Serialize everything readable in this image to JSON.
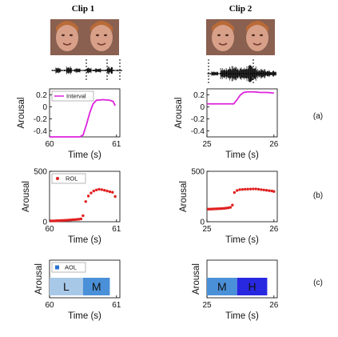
{
  "columns": [
    {
      "title": "Clip 1"
    },
    {
      "title": "Clip 2"
    }
  ],
  "panel_labels": [
    "(a)",
    "(b)",
    "(c)"
  ],
  "axis_labels": {
    "x": "Time (s)",
    "y": "Arousal"
  },
  "chart_data": [
    {
      "type": "line",
      "row": 0,
      "col": 0,
      "color": "#dd22dd",
      "legend": "Interval",
      "xlim": [
        60,
        61.05
      ],
      "ylim": [
        -0.5,
        0.3
      ],
      "xticks": [
        "60",
        "61"
      ],
      "yticks": [
        "0.2",
        "0",
        "-0.2",
        "-0.4"
      ],
      "x": [
        60,
        60.45,
        60.5,
        60.55,
        60.6,
        60.65,
        60.7,
        60.8,
        60.9,
        60.95,
        60.98
      ],
      "y": [
        -0.5,
        -0.5,
        -0.47,
        -0.3,
        -0.1,
        0.05,
        0.11,
        0.12,
        0.11,
        0.09,
        0.02
      ]
    },
    {
      "type": "line",
      "row": 0,
      "col": 1,
      "color": "#dd22dd",
      "xlim": [
        25,
        26.05
      ],
      "ylim": [
        -0.5,
        0.3
      ],
      "xticks": [
        "25",
        "26"
      ],
      "yticks": [
        "0.2",
        "0",
        "-0.2",
        "-0.4"
      ],
      "x": [
        25,
        25.4,
        25.45,
        25.5,
        25.55,
        25.6,
        25.7,
        25.8,
        25.9,
        26
      ],
      "y": [
        0.05,
        0.05,
        0.12,
        0.2,
        0.24,
        0.25,
        0.25,
        0.24,
        0.24,
        0.23
      ]
    },
    {
      "type": "scatter",
      "row": 1,
      "col": 0,
      "color": "#e02020",
      "legend": "ROL",
      "xlim": [
        60,
        61.05
      ],
      "ylim": [
        0,
        500
      ],
      "xticks": [
        "60",
        "61"
      ],
      "yticks": [
        "500",
        "0"
      ],
      "x": [
        60.02,
        60.05,
        60.08,
        60.11,
        60.14,
        60.17,
        60.2,
        60.23,
        60.26,
        60.29,
        60.32,
        60.35,
        60.38,
        60.41,
        60.44,
        60.47,
        60.5,
        60.54,
        60.58,
        60.62,
        60.66,
        60.7,
        60.74,
        60.78,
        60.82,
        60.86,
        60.9,
        60.94,
        60.98
      ],
      "y": [
        8,
        8,
        9,
        10,
        11,
        12,
        13,
        14,
        15,
        17,
        18,
        20,
        21,
        23,
        25,
        28,
        60,
        200,
        255,
        285,
        305,
        315,
        322,
        318,
        312,
        305,
        298,
        292,
        250
      ]
    },
    {
      "type": "scatter",
      "row": 1,
      "col": 1,
      "color": "#e02020",
      "xlim": [
        25,
        26.05
      ],
      "ylim": [
        0,
        500
      ],
      "xticks": [
        "25",
        "26"
      ],
      "yticks": [
        "500",
        "0"
      ],
      "x": [
        25.02,
        25.05,
        25.08,
        25.11,
        25.14,
        25.17,
        25.2,
        25.23,
        25.26,
        25.29,
        25.32,
        25.35,
        25.38,
        25.41,
        25.45,
        25.49,
        25.53,
        25.57,
        25.61,
        25.65,
        25.69,
        25.73,
        25.77,
        25.81,
        25.85,
        25.89,
        25.93,
        25.97,
        26
      ],
      "y": [
        125,
        125,
        126,
        127,
        128,
        129,
        130,
        131,
        133,
        135,
        138,
        142,
        165,
        290,
        310,
        318,
        320,
        322,
        323,
        324,
        325,
        325,
        322,
        318,
        315,
        312,
        308,
        305,
        300
      ]
    },
    {
      "type": "bar",
      "row": 2,
      "col": 0,
      "legend": "AOL",
      "xlim": [
        60,
        61.05
      ],
      "xticks": [
        "60",
        "61"
      ],
      "segments": [
        {
          "label": "L",
          "x0": 60,
          "x1": 60.5,
          "color": "#a8c8e8"
        },
        {
          "label": "M",
          "x0": 60.5,
          "x1": 60.9,
          "color": "#4a90d8"
        }
      ]
    },
    {
      "type": "bar",
      "row": 2,
      "col": 1,
      "xlim": [
        25,
        26.05
      ],
      "xticks": [
        "25",
        "26"
      ],
      "segments": [
        {
          "label": "M",
          "x0": 25,
          "x1": 25.45,
          "color": "#4a90d8"
        },
        {
          "label": "H",
          "x0": 25.45,
          "x1": 25.9,
          "color": "#2828e0"
        }
      ]
    }
  ]
}
